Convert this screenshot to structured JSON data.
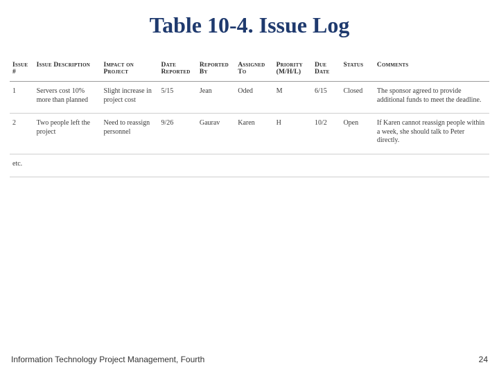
{
  "title": "Table 10-4. Issue Log",
  "footer": {
    "left": "Information Technology Project Management, Fourth",
    "page": "24"
  },
  "table": {
    "col_widths_pct": [
      5,
      14,
      12,
      8,
      8,
      8,
      8,
      6,
      7,
      24
    ],
    "columns": [
      "Issue #",
      "Issue Description",
      "Impact on Project",
      "Date Reported",
      "Reported By",
      "Assigned To",
      "Priority (M/H/L)",
      "Due Date",
      "Status",
      "Comments"
    ],
    "rows": [
      [
        "1",
        "Servers cost 10% more than planned",
        "Slight increase in project cost",
        "5/15",
        "Jean",
        "Oded",
        "M",
        "6/15",
        "Closed",
        "The sponsor agreed to provide additional funds to meet the deadline."
      ],
      [
        "2",
        "Two people left the project",
        "Need to reassign personnel",
        "9/26",
        "Gaurav",
        "Karen",
        "H",
        "10/2",
        "Open",
        "If Karen cannot reassign people within a week, she should talk to Peter directly."
      ],
      [
        "etc.",
        "",
        "",
        "",
        "",
        "",
        "",
        "",
        "",
        ""
      ]
    ]
  },
  "colors": {
    "title": "#1f3a6e",
    "header_border": "#9a9a9a",
    "row_border": "#cfcfcf",
    "background": "#ffffff"
  }
}
